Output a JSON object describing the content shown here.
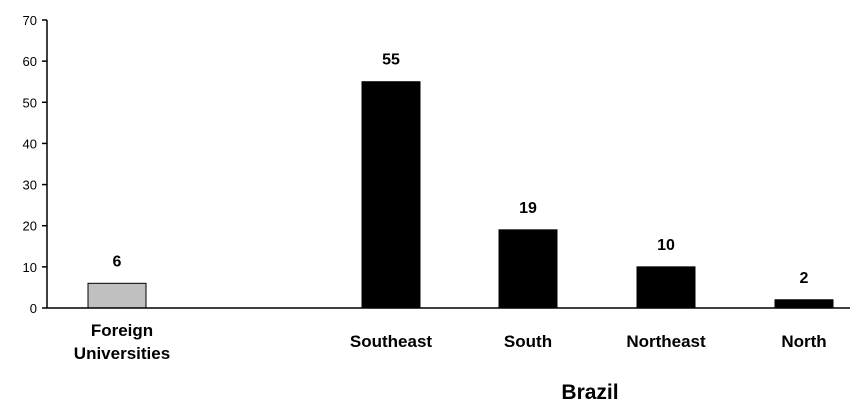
{
  "chart_data": {
    "type": "bar",
    "categories": [
      "Foreign\nUniversities",
      "Southeast",
      "South",
      "Northeast",
      "North"
    ],
    "values": [
      6,
      55,
      19,
      10,
      2
    ],
    "bar_colors": [
      "#c0c0c0",
      "#000000",
      "#000000",
      "#000000",
      "#000000"
    ],
    "data_labels": [
      "6",
      "55",
      "19",
      "10",
      "2"
    ],
    "group_label": "Brazil",
    "title": "",
    "xlabel": "",
    "ylabel": "",
    "ylim": [
      0,
      70
    ],
    "yticks": [
      0,
      10,
      20,
      30,
      40,
      50,
      60,
      70
    ],
    "grid": false,
    "legend": "none"
  }
}
